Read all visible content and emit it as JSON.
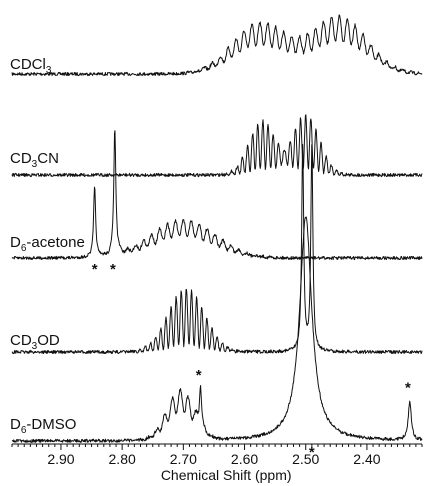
{
  "chart_data": {
    "type": "line",
    "title": "",
    "xlabel": "Chemical Shift (ppm)",
    "ylabel": "",
    "xlim": [
      2.98,
      2.31
    ],
    "x_reversed": true,
    "x_ticks": [
      "2.90",
      "2.80",
      "2.70",
      "2.60",
      "2.50",
      "2.40"
    ],
    "grid": false,
    "legend": "none",
    "series": [
      {
        "name": "CDCl3",
        "label": {
          "main": "CDCl",
          "sub": "3",
          "rest": ""
        },
        "peaks": [
          {
            "center": 2.575,
            "height": 0.8,
            "width": 0.06,
            "shape": "broad-multiplet"
          },
          {
            "center": 2.445,
            "height": 0.9,
            "width": 0.06,
            "shape": "broad-multiplet"
          }
        ],
        "markers": []
      },
      {
        "name": "CD3CN",
        "label": {
          "main": "CD",
          "sub": "3",
          "rest": "CN"
        },
        "peaks": [
          {
            "center": 2.57,
            "height": 0.85,
            "width": 0.03,
            "shape": "multiplet"
          },
          {
            "center": 2.5,
            "height": 0.95,
            "width": 0.03,
            "shape": "multiplet"
          }
        ],
        "markers": []
      },
      {
        "name": "D6-acetone",
        "label": {
          "main": "D",
          "sub": "6",
          "rest": "-acetone"
        },
        "peaks": [
          {
            "center": 2.845,
            "height": 1.1,
            "width": 0.002,
            "shape": "singlet"
          },
          {
            "center": 2.812,
            "height": 2.0,
            "width": 0.002,
            "shape": "singlet"
          },
          {
            "center": 2.7,
            "height": 0.6,
            "width": 0.07,
            "shape": "broad-multiplet"
          }
        ],
        "markers": [
          {
            "x": 2.845,
            "text": "*"
          },
          {
            "x": 2.815,
            "text": "*"
          }
        ]
      },
      {
        "name": "CD3OD",
        "label": {
          "main": "CD",
          "sub": "3",
          "rest": "OD"
        },
        "peaks": [
          {
            "center": 2.695,
            "height": 1.0,
            "width": 0.04,
            "shape": "multiplet"
          },
          {
            "center": 2.505,
            "height": 3.2,
            "width": 0.002,
            "shape": "singlet-offscale"
          },
          {
            "center": 2.49,
            "height": 3.2,
            "width": 0.002,
            "shape": "singlet-offscale"
          }
        ],
        "markers": []
      },
      {
        "name": "D6-DMSO",
        "label": {
          "main": "D",
          "sub": "6",
          "rest": "-DMSO"
        },
        "peaks": [
          {
            "center": 2.705,
            "height": 0.8,
            "width": 0.03,
            "shape": "broad-multiplet"
          },
          {
            "center": 2.672,
            "height": 0.7,
            "width": 0.002,
            "shape": "singlet"
          },
          {
            "center": 2.5,
            "height": 3.5,
            "width": 0.012,
            "shape": "singlet-offscale"
          },
          {
            "center": 2.33,
            "height": 0.6,
            "width": 0.003,
            "shape": "singlet"
          }
        ],
        "markers": [
          {
            "x": 2.675,
            "text": "*"
          },
          {
            "x": 2.49,
            "text": "*"
          },
          {
            "x": 2.333,
            "text": "*"
          }
        ]
      }
    ]
  }
}
